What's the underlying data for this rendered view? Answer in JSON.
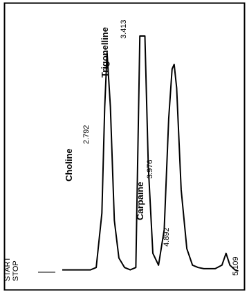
{
  "chart_data": {
    "type": "line",
    "title": "",
    "xlabel": "",
    "ylabel": "",
    "start_marker": "START",
    "stop_marker": "STOP",
    "peaks": [
      {
        "name": "Choline",
        "rt_label": "2.792"
      },
      {
        "name": "Trigonelline",
        "rt_label": "3.413"
      },
      {
        "name": "Carpaine",
        "rt_label": "3.976"
      },
      {
        "name": "",
        "rt_label": "4.892"
      }
    ],
    "stop_rt_label": "5.109",
    "series": [
      {
        "x": [
          2.0,
          2.3,
          2.5,
          2.6,
          2.7,
          2.75,
          2.792,
          2.85,
          2.92,
          3.0,
          3.1,
          3.2,
          3.3,
          3.37,
          3.413,
          3.46,
          3.52,
          3.6,
          3.7,
          3.8,
          3.88,
          3.94,
          3.976,
          4.02,
          4.1,
          4.2,
          4.3,
          4.4,
          4.5,
          4.6,
          4.7,
          4.82,
          4.892,
          4.96,
          5.05,
          5.109
        ],
        "y": [
          1.0,
          1.0,
          1.0,
          2.0,
          25.0,
          70.0,
          93.0,
          70.0,
          22.0,
          6.0,
          2.0,
          1.0,
          2.0,
          100.0,
          100.0,
          100.0,
          45.0,
          8.0,
          3.0,
          18.0,
          65.0,
          86.0,
          88.0,
          78.0,
          35.0,
          10.0,
          3.0,
          2.0,
          1.5,
          1.5,
          1.5,
          3.0,
          8.0,
          3.0,
          1.0,
          0.5
        ]
      }
    ]
  }
}
